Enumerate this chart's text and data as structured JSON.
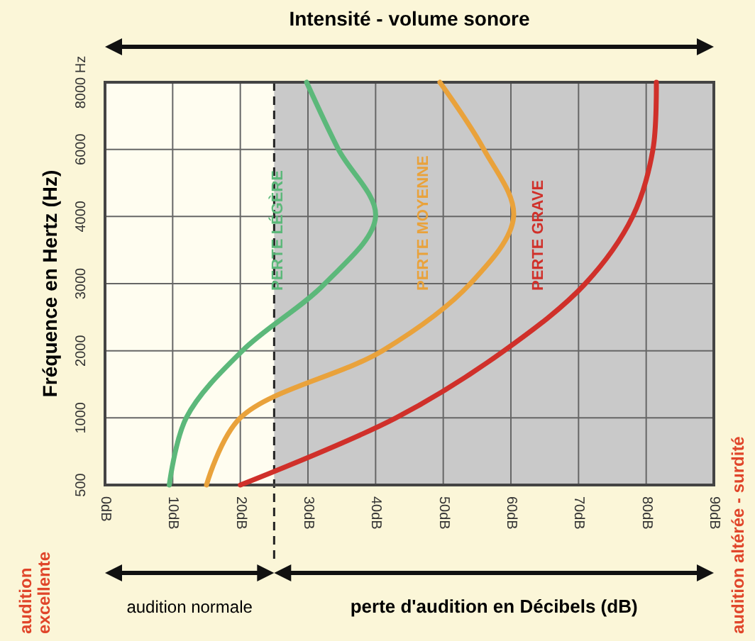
{
  "chart_data": {
    "type": "line",
    "orientation": "horizontal",
    "title": "Intensité - volume sonore",
    "xlabel": "perte d'audition en Décibels (dB)",
    "ylabel": "Fréquence en Hertz (Hz)",
    "annotations": [
      "audition normale",
      "audition excellente",
      "audition altérée - surdité"
    ],
    "categories": [
      "8000 Hz",
      "6000",
      "4000",
      "3000",
      "2000",
      "1000",
      "500"
    ],
    "xlim": [
      0,
      90
    ],
    "xticks": [
      {
        "value": 0,
        "label": "0dB"
      },
      {
        "value": 10,
        "label": "10dB"
      },
      {
        "value": 20,
        "label": "20dB"
      },
      {
        "value": 30,
        "label": "30dB"
      },
      {
        "value": 40,
        "label": "40dB"
      },
      {
        "value": 50,
        "label": "50dB"
      },
      {
        "value": 60,
        "label": "60dB"
      },
      {
        "value": 70,
        "label": "70dB"
      },
      {
        "value": 80,
        "label": "80dB"
      },
      {
        "value": 90,
        "label": "90dB"
      }
    ],
    "grid": true,
    "marker": "none",
    "line_style": "solid",
    "ref_lines": [
      {
        "axis": "x",
        "value": 25,
        "label": null,
        "color": "#222222",
        "line_style": "dashed"
      }
    ],
    "bands": [
      {
        "axis": "x",
        "from": 25,
        "to": 90,
        "label": null,
        "color": "#c9c9c9"
      }
    ],
    "series": [
      {
        "name": "PERTE LÉGÈRE",
        "color": "#5cb87a",
        "values": [
          29.8,
          34.5,
          40,
          32.5,
          20.3,
          12,
          9.5
        ]
      },
      {
        "name": "PERTE MOYENNE",
        "color": "#e9a23b",
        "values": [
          49.5,
          56,
          60.4,
          54,
          41,
          20,
          15
        ]
      },
      {
        "name": "PERTE GRAVE",
        "color": "#d0302a",
        "values": [
          81.5,
          81,
          78,
          71,
          59,
          43,
          20
        ]
      }
    ]
  }
}
